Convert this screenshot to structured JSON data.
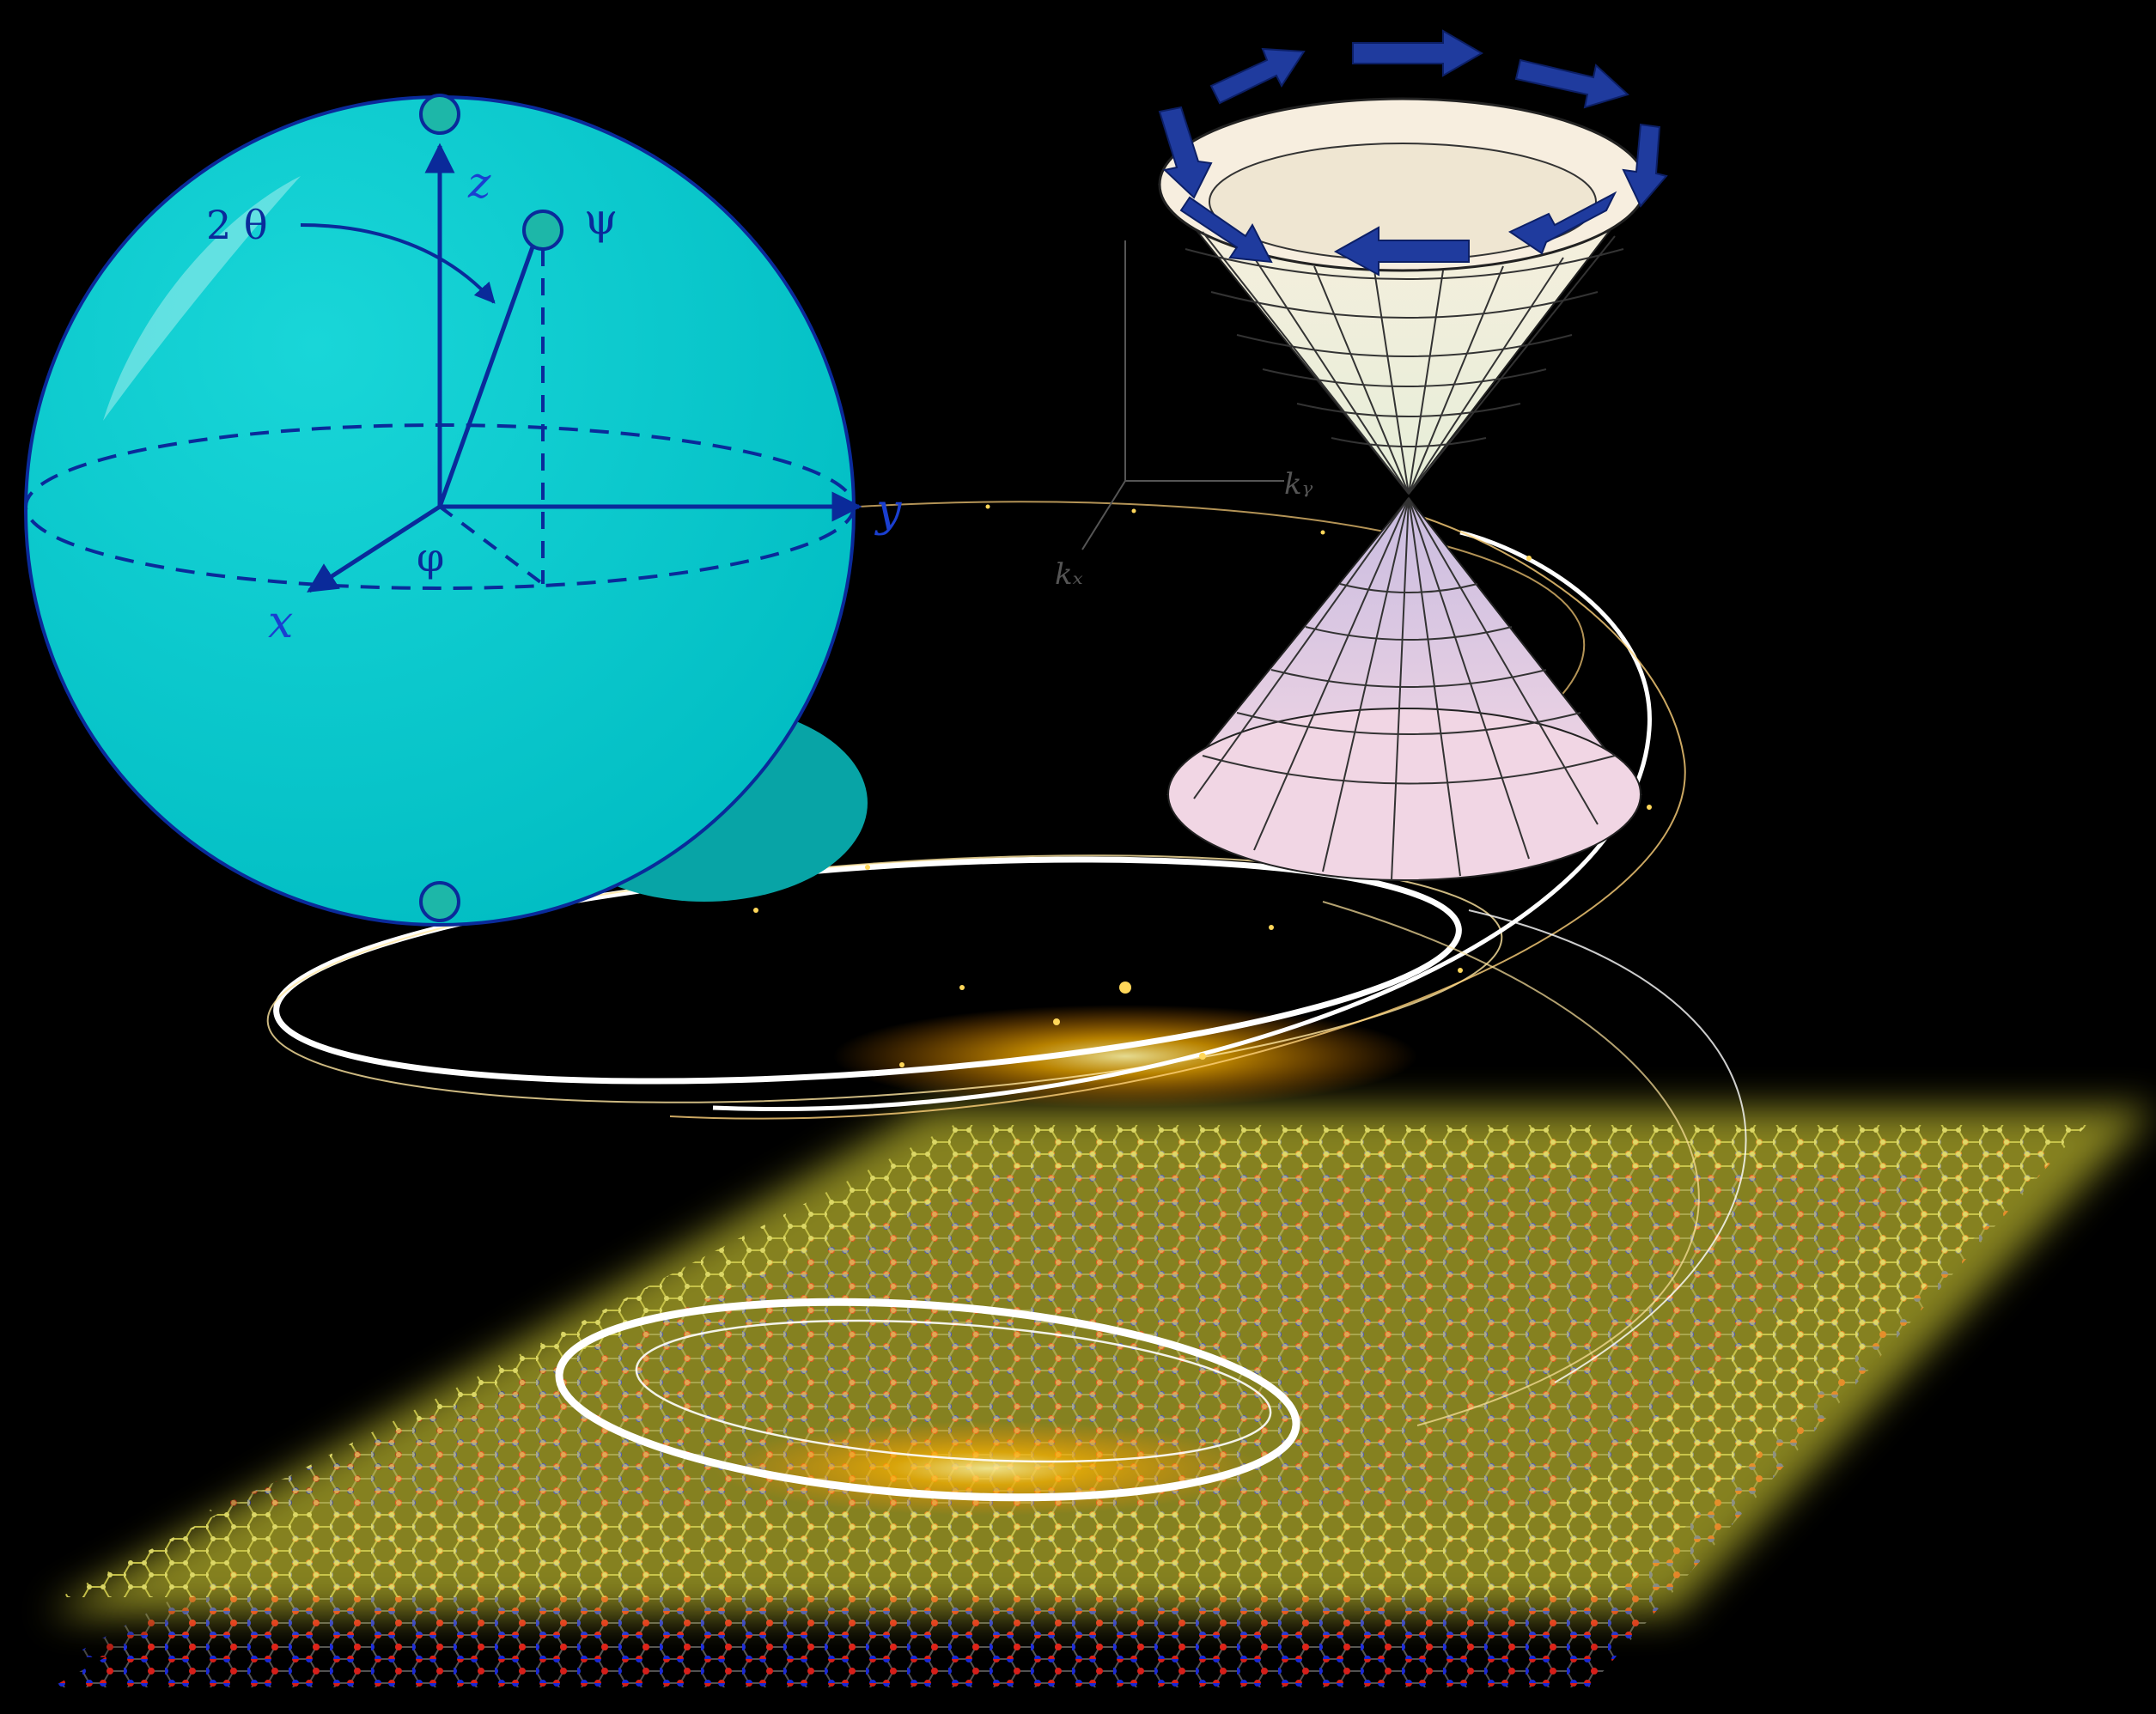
{
  "bloch_sphere": {
    "axis_z_label": "z",
    "axis_y_label": "y",
    "axis_x_label": "x",
    "angle_theta_label": "2 θ",
    "angle_phi_label": "φ",
    "state_label": "ψ",
    "sphere_color": "#00c8cc",
    "line_color": "#0a2a9a"
  },
  "dirac_cone": {
    "axis_kx_label": "kₓ",
    "axis_ky_label": "kᵧ",
    "upper_cone_color": "#f4eedd",
    "lower_cone_color": "#dcc8e2",
    "spin_arrow_color": "#1f3b9e"
  },
  "lattice": {
    "top_layer_color": "#d8d23a",
    "atom_a_color": "#e0201a",
    "atom_b_color": "#1a2ae0",
    "glow_color": "#f3ec3a"
  },
  "light_trail_color": "#ffd560"
}
